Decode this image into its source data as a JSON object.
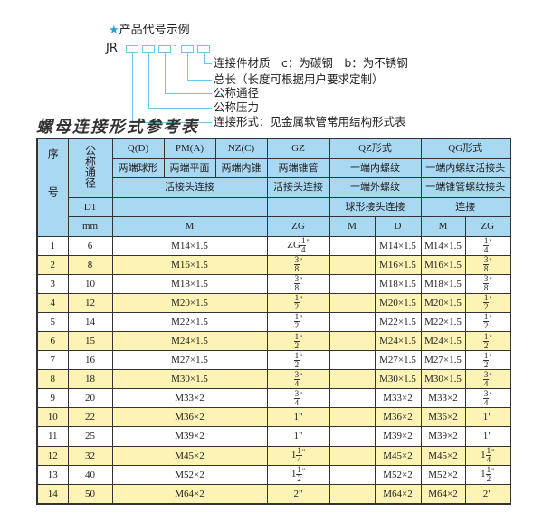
{
  "example": {
    "title": "产品代号示例",
    "code_prefix": "JR",
    "dash": "-",
    "descriptions": [
      "连接件材质　c：为碳钢　b：为不锈钢",
      "总长（长度可根据用户要求定制）",
      "公称通径",
      "公称压力",
      "连接形式：见金属软管常用结构形式表"
    ]
  },
  "table_title": "螺母连接形式参考表",
  "header": {
    "seq": "序号",
    "nominal": "公称通径",
    "d1": "D1",
    "mm": "mm",
    "q": "Q(D)",
    "pm": "PM(A)",
    "nz": "NZ(C)",
    "gz": "GZ",
    "qz": "QZ形式",
    "qg": "QG形式",
    "q_desc": "两端球形",
    "pm_desc": "两端平面",
    "nz_desc": "两端内锥",
    "gz_desc": "两端锥管",
    "qz_desc1": "一端内螺纹",
    "qg_desc1": "一端内螺纹活接头",
    "union": "活接头连接",
    "gz_union": "活接头连接",
    "qz_desc2": "一端外螺纹",
    "qg_desc2": "一端锥管螺纹接头",
    "qz_desc3": "球形接头连接",
    "qg_desc3": "连接",
    "m": "M",
    "zg": "ZG",
    "qz_m": "M",
    "qz_d": "D",
    "qg_m": "M",
    "qg_zg": "ZG"
  },
  "rows": [
    {
      "no": "1",
      "dn": "6",
      "m": "M14×1.5",
      "zg": {
        "pre": "ZG",
        "n": "1",
        "d": "4",
        "post": "\""
      },
      "qz_m": "",
      "qz_d": "M14×1.5",
      "qg_m": "M14×1.5",
      "qg_zg": {
        "pre": "",
        "n": "1",
        "d": "4",
        "post": "\""
      }
    },
    {
      "no": "2",
      "dn": "8",
      "m": "M16×1.5",
      "zg": {
        "pre": "",
        "n": "3",
        "d": "8",
        "post": "\""
      },
      "qz_m": "",
      "qz_d": "M16×1.5",
      "qg_m": "M16×1.5",
      "qg_zg": {
        "pre": "",
        "n": "3",
        "d": "8",
        "post": "\""
      }
    },
    {
      "no": "3",
      "dn": "10",
      "m": "M18×1.5",
      "zg": {
        "pre": "",
        "n": "3",
        "d": "8",
        "post": "\""
      },
      "qz_m": "",
      "qz_d": "M18×1.5",
      "qg_m": "M18×1.5",
      "qg_zg": {
        "pre": "",
        "n": "3",
        "d": "8",
        "post": "\""
      }
    },
    {
      "no": "4",
      "dn": "12",
      "m": "M20×1.5",
      "zg": {
        "pre": "",
        "n": "1",
        "d": "2",
        "post": "\""
      },
      "qz_m": "",
      "qz_d": "M20×1.5",
      "qg_m": "M20×1.5",
      "qg_zg": {
        "pre": "",
        "n": "1",
        "d": "2",
        "post": "\""
      }
    },
    {
      "no": "5",
      "dn": "14",
      "m": "M22×1.5",
      "zg": {
        "pre": "",
        "n": "1",
        "d": "2",
        "post": "\""
      },
      "qz_m": "",
      "qz_d": "M22×1.5",
      "qg_m": "M22×1.5",
      "qg_zg": {
        "pre": "",
        "n": "1",
        "d": "2",
        "post": "\""
      }
    },
    {
      "no": "6",
      "dn": "15",
      "m": "M24×1.5",
      "zg": {
        "pre": "",
        "n": "1",
        "d": "2",
        "post": "\""
      },
      "qz_m": "",
      "qz_d": "M24×1.5",
      "qg_m": "M24×1.5",
      "qg_zg": {
        "pre": "",
        "n": "1",
        "d": "2",
        "post": "\""
      }
    },
    {
      "no": "7",
      "dn": "16",
      "m": "M27×1.5",
      "zg": {
        "pre": "",
        "n": "1",
        "d": "2",
        "post": "\""
      },
      "qz_m": "",
      "qz_d": "M27×1.5",
      "qg_m": "M27×1.5",
      "qg_zg": {
        "pre": "",
        "n": "1",
        "d": "2",
        "post": "\""
      }
    },
    {
      "no": "8",
      "dn": "18",
      "m": "M30×1.5",
      "zg": {
        "pre": "",
        "n": "3",
        "d": "4",
        "post": "\""
      },
      "qz_m": "",
      "qz_d": "M30×1.5",
      "qg_m": "M30×1.5",
      "qg_zg": {
        "pre": "",
        "n": "3",
        "d": "4",
        "post": "\""
      }
    },
    {
      "no": "9",
      "dn": "20",
      "m": "M33×2",
      "zg": {
        "pre": "",
        "n": "3",
        "d": "4",
        "post": "\""
      },
      "qz_m": "",
      "qz_d": "M33×2",
      "qg_m": "M33×2",
      "qg_zg": {
        "pre": "",
        "n": "3",
        "d": "4",
        "post": "\""
      }
    },
    {
      "no": "10",
      "dn": "22",
      "m": "M36×2",
      "zg": {
        "pre": "1\"",
        "n": "",
        "d": "",
        "post": ""
      },
      "qz_m": "",
      "qz_d": "M36×2",
      "qg_m": "M36×2",
      "qg_zg": {
        "pre": "1\"",
        "n": "",
        "d": "",
        "post": ""
      }
    },
    {
      "no": "11",
      "dn": "25",
      "m": "M39×2",
      "zg": {
        "pre": "1\"",
        "n": "",
        "d": "",
        "post": ""
      },
      "qz_m": "",
      "qz_d": "M39×2",
      "qg_m": "M39×2",
      "qg_zg": {
        "pre": "1\"",
        "n": "",
        "d": "",
        "post": ""
      }
    },
    {
      "no": "12",
      "dn": "32",
      "m": "M45×2",
      "zg": {
        "pre": "1",
        "n": "1",
        "d": "4",
        "post": "\""
      },
      "qz_m": "",
      "qz_d": "M45×2",
      "qg_m": "M45×2",
      "qg_zg": {
        "pre": "1",
        "n": "1",
        "d": "4",
        "post": "\""
      }
    },
    {
      "no": "13",
      "dn": "40",
      "m": "M52×2",
      "zg": {
        "pre": "1",
        "n": "1",
        "d": "2",
        "post": "\""
      },
      "qz_m": "",
      "qz_d": "M52×2",
      "qg_m": "M52×2",
      "qg_zg": {
        "pre": "1",
        "n": "1",
        "d": "2",
        "post": "\""
      }
    },
    {
      "no": "14",
      "dn": "50",
      "m": "M64×2",
      "zg": {
        "pre": "2\"",
        "n": "",
        "d": "",
        "post": ""
      },
      "qz_m": "",
      "qz_d": "M64×2",
      "qg_m": "M64×2",
      "qg_zg": {
        "pre": "2\"",
        "n": "",
        "d": "",
        "post": ""
      }
    }
  ],
  "colors": {
    "header_bg": "#a9d8f2",
    "alt_row_bg": "#fdf3b4",
    "accent": "#2a9fd8",
    "connector_line": "#6cc6e6"
  }
}
